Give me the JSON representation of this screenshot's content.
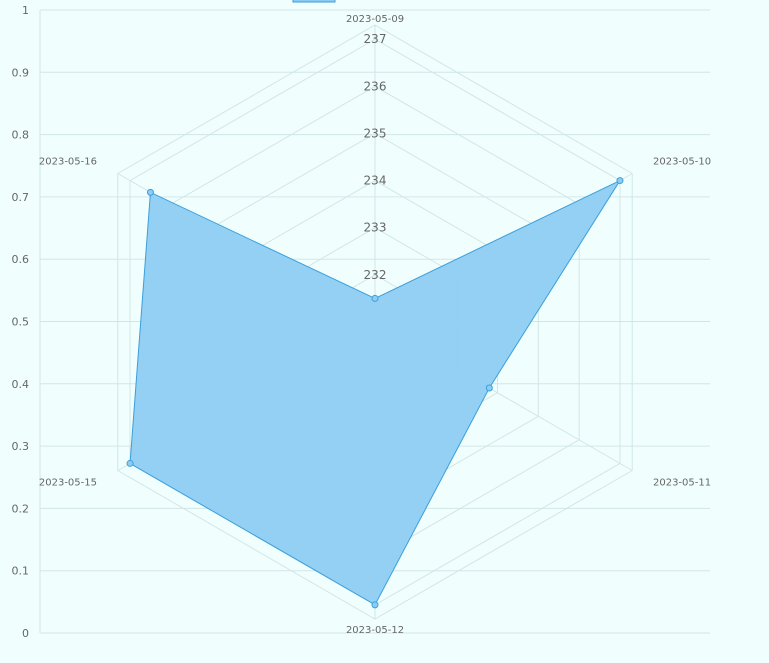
{
  "chart_data": {
    "type": "radar",
    "title": "",
    "categories": [
      "2023-05-09",
      "2023-05-10",
      "2023-05-11",
      "2023-05-12",
      "2023-05-15",
      "2023-05-16"
    ],
    "series": [
      {
        "name": "",
        "values": [
          231.5,
          237.0,
          233.8,
          237.0,
          237.0,
          236.5
        ]
      }
    ],
    "radial_ticks": [
      "232",
      "233",
      "234",
      "235",
      "236",
      "237"
    ],
    "radial_min": 231.0,
    "radial_max": 237.3,
    "y_ticks": [
      "0",
      "0.1",
      "0.2",
      "0.3",
      "0.4",
      "0.5",
      "0.6",
      "0.7",
      "0.8",
      "0.9",
      "1"
    ],
    "grid": true,
    "legend": "top",
    "colors": {
      "fill": "#8ecdf3",
      "stroke": "#3a9fdc",
      "grid": "#d2e6e6",
      "background": "#f0fffe"
    }
  }
}
